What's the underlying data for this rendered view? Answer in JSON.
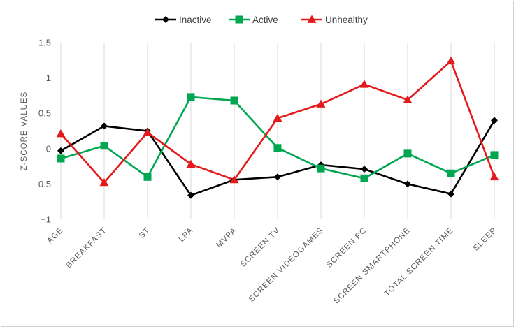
{
  "chart_data": {
    "type": "line",
    "title": "",
    "xlabel": "",
    "ylabel": "Z-SCORE VALUES",
    "ylim": [
      -1,
      1.5
    ],
    "yticks": [
      "1.5",
      "1",
      "0.5",
      "0",
      "−0.5",
      "−1"
    ],
    "ytick_values": [
      1.5,
      1,
      0.5,
      0,
      -0.5,
      -1
    ],
    "grid": "vertical",
    "legend_position": "top",
    "categories": [
      "AGE",
      "BREAKFAST",
      "ST",
      "LPA",
      "MVPA",
      "SCREEN TV",
      "SCREEN VIDEOGAMES",
      "SCREEN PC",
      "SCREEN SMARTPHONE",
      "TOTAL SCREEN TIME",
      "SLEEP"
    ],
    "series": [
      {
        "name": "Inactive",
        "color": "#000000",
        "marker": "diamond",
        "values": [
          -0.03,
          0.32,
          0.25,
          -0.66,
          -0.44,
          -0.4,
          -0.23,
          -0.29,
          -0.5,
          -0.64,
          0.4
        ]
      },
      {
        "name": "Active",
        "color": "#00a650",
        "marker": "square",
        "values": [
          -0.14,
          0.04,
          -0.4,
          0.73,
          0.68,
          0.01,
          -0.28,
          -0.42,
          -0.07,
          -0.35,
          -0.09
        ]
      },
      {
        "name": "Unhealthy",
        "color": "#e31a1c",
        "marker": "triangle",
        "values": [
          0.21,
          -0.48,
          0.23,
          -0.22,
          -0.44,
          0.43,
          0.63,
          0.91,
          0.69,
          1.24,
          -0.4
        ]
      }
    ]
  }
}
